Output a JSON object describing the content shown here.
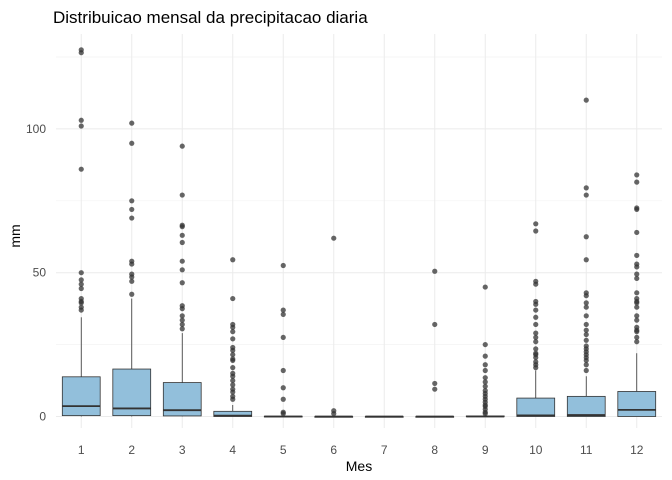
{
  "chart_data": {
    "type": "boxplot",
    "title": "Distribuicao mensal da precipitacao diaria",
    "xlabel": "Mes",
    "ylabel": "mm",
    "categories": [
      "1",
      "2",
      "3",
      "4",
      "5",
      "6",
      "7",
      "8",
      "9",
      "10",
      "11",
      "12"
    ],
    "ylim": [
      -4,
      133
    ],
    "yticks": [
      0,
      50,
      100
    ],
    "grid": true,
    "colors": {
      "box_fill": "#92bfdb",
      "box_stroke": "#333333",
      "outlier": "#333333"
    },
    "boxes": [
      {
        "month": "1",
        "q1": 0.3,
        "median": 3.6,
        "q3": 13.8,
        "whisker_low": 0,
        "whisker_high": 34.5,
        "outliers": [
          127.5,
          126.5,
          103,
          101,
          86,
          50,
          47.5,
          46,
          44.5,
          41,
          40,
          39.5,
          38,
          37
        ]
      },
      {
        "month": "2",
        "q1": 0.3,
        "median": 2.8,
        "q3": 16.5,
        "whisker_low": 0,
        "whisker_high": 41,
        "outliers": [
          102,
          95,
          75,
          72,
          69,
          54,
          53,
          49.5,
          48.5,
          47,
          42.5
        ]
      },
      {
        "month": "3",
        "q1": 0.2,
        "median": 2.2,
        "q3": 11.8,
        "whisker_low": 0,
        "whisker_high": 29,
        "outliers": [
          94,
          77,
          66.5,
          66,
          63,
          60.5,
          54,
          51,
          46.5,
          38.5,
          37.5,
          35,
          33.5,
          32,
          30.5
        ]
      },
      {
        "month": "4",
        "q1": 0,
        "median": 0.3,
        "q3": 1.8,
        "whisker_low": 0,
        "whisker_high": 4,
        "outliers": [
          54.5,
          41,
          32,
          31,
          29.5,
          27,
          24,
          23,
          21.5,
          20,
          19.5,
          17,
          15,
          14,
          12.5,
          11,
          9.5,
          8.5,
          7,
          6
        ]
      },
      {
        "month": "5",
        "q1": 0,
        "median": 0,
        "q3": 0.1,
        "whisker_low": 0,
        "whisker_high": 0.2,
        "outliers": [
          52.5,
          37,
          35.5,
          27.5,
          16,
          10,
          6,
          1.5,
          1
        ]
      },
      {
        "month": "6",
        "q1": 0,
        "median": 0,
        "q3": 0,
        "whisker_low": 0,
        "whisker_high": 0,
        "outliers": [
          62,
          2,
          1
        ]
      },
      {
        "month": "7",
        "q1": 0,
        "median": 0,
        "q3": 0,
        "whisker_low": 0,
        "whisker_high": 0,
        "outliers": []
      },
      {
        "month": "8",
        "q1": 0,
        "median": 0,
        "q3": 0,
        "whisker_low": 0,
        "whisker_high": 0,
        "outliers": [
          50.5,
          32,
          11.5,
          9.5
        ]
      },
      {
        "month": "9",
        "q1": 0,
        "median": 0,
        "q3": 0.2,
        "whisker_low": 0,
        "whisker_high": 0.5,
        "outliers": [
          45,
          25,
          21,
          18,
          16,
          13.5,
          12,
          10.5,
          9,
          8,
          7,
          6,
          5,
          4,
          3.5,
          2.5,
          1.5,
          1
        ]
      },
      {
        "month": "10",
        "q1": 0,
        "median": 0.4,
        "q3": 6.4,
        "whisker_low": 0,
        "whisker_high": 16,
        "outliers": [
          67,
          64.5,
          47,
          46,
          40,
          39,
          37,
          34.5,
          32,
          29,
          27.5,
          26,
          23.5,
          22,
          21.5,
          20.5,
          19,
          18,
          17
        ]
      },
      {
        "month": "11",
        "q1": 0,
        "median": 0.5,
        "q3": 7,
        "whisker_low": 0,
        "whisker_high": 14,
        "outliers": [
          110,
          79.5,
          77,
          62.5,
          54.5,
          43,
          42,
          39.5,
          38,
          35,
          32,
          30,
          28.5,
          26.5,
          24.5,
          23.5,
          22.5,
          21.5,
          20.5,
          19.5,
          18,
          16
        ]
      },
      {
        "month": "12",
        "q1": 0,
        "median": 2.3,
        "q3": 8.7,
        "whisker_low": 0,
        "whisker_high": 22,
        "outliers": [
          84,
          81.5,
          72.5,
          72,
          64,
          56,
          53,
          52,
          49.5,
          48,
          43,
          41,
          40,
          39.5,
          38,
          35,
          33.5,
          31,
          30,
          29.5,
          27.5,
          26
        ]
      }
    ]
  }
}
